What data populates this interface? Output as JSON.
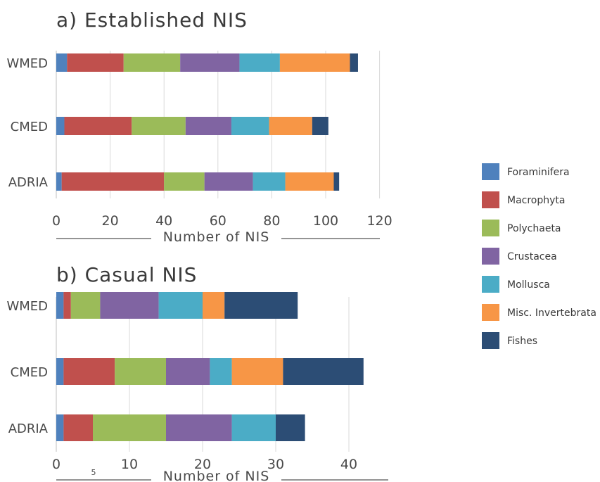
{
  "colors": {
    "Foraminifera": "#4f81bd",
    "Macrophyta": "#c0504d",
    "Polychaeta": "#9bbb59",
    "Crustacea": "#8064a2",
    "Mollusca": "#4bacc6",
    "Misc. Invertebrata": "#f79646",
    "Fishes": "#2c4d75"
  },
  "legend": {
    "placement": "right",
    "items": [
      "Foraminifera",
      "Macrophyta",
      "Polychaeta",
      "Crustacea",
      "Mollusca",
      "Misc. Invertebrata",
      "Fishes"
    ]
  },
  "chart_data": [
    {
      "type": "bar",
      "orientation": "horizontal",
      "stacked": true,
      "title": "a) Established NIS",
      "xlabel": "Number of NIS",
      "categories": [
        "WMED",
        "CMED",
        "ADRIA"
      ],
      "xlim": [
        0,
        120
      ],
      "xticks": [
        0,
        20,
        40,
        60,
        80,
        100,
        120
      ],
      "grid": "vertical",
      "series": [
        {
          "name": "Foraminifera",
          "values": [
            4,
            3,
            2
          ]
        },
        {
          "name": "Macrophyta",
          "values": [
            21,
            25,
            38
          ]
        },
        {
          "name": "Polychaeta",
          "values": [
            21,
            20,
            15
          ]
        },
        {
          "name": "Crustacea",
          "values": [
            22,
            17,
            18
          ]
        },
        {
          "name": "Mollusca",
          "values": [
            15,
            14,
            12
          ]
        },
        {
          "name": "Misc. Invertebrata",
          "values": [
            26,
            16,
            18
          ]
        },
        {
          "name": "Fishes",
          "values": [
            3,
            6,
            2
          ]
        }
      ]
    },
    {
      "type": "bar",
      "orientation": "horizontal",
      "stacked": true,
      "title": "b) Casual NIS",
      "xlabel": "Number of NIS",
      "categories": [
        "WMED",
        "CMED",
        "ADRIA"
      ],
      "xlim": [
        0,
        45
      ],
      "xticks": [
        0,
        10,
        20,
        30,
        40
      ],
      "extra_tick_labels": [
        "5"
      ],
      "grid": "vertical",
      "series": [
        {
          "name": "Foraminifera",
          "values": [
            1,
            1,
            1
          ]
        },
        {
          "name": "Macrophyta",
          "values": [
            1,
            7,
            4
          ]
        },
        {
          "name": "Polychaeta",
          "values": [
            4,
            7,
            10
          ]
        },
        {
          "name": "Crustacea",
          "values": [
            8,
            6,
            9
          ]
        },
        {
          "name": "Mollusca",
          "values": [
            6,
            3,
            6
          ]
        },
        {
          "name": "Misc. Invertebrata",
          "values": [
            3,
            7,
            0
          ]
        },
        {
          "name": "Fishes",
          "values": [
            10,
            11,
            4
          ]
        }
      ]
    }
  ]
}
